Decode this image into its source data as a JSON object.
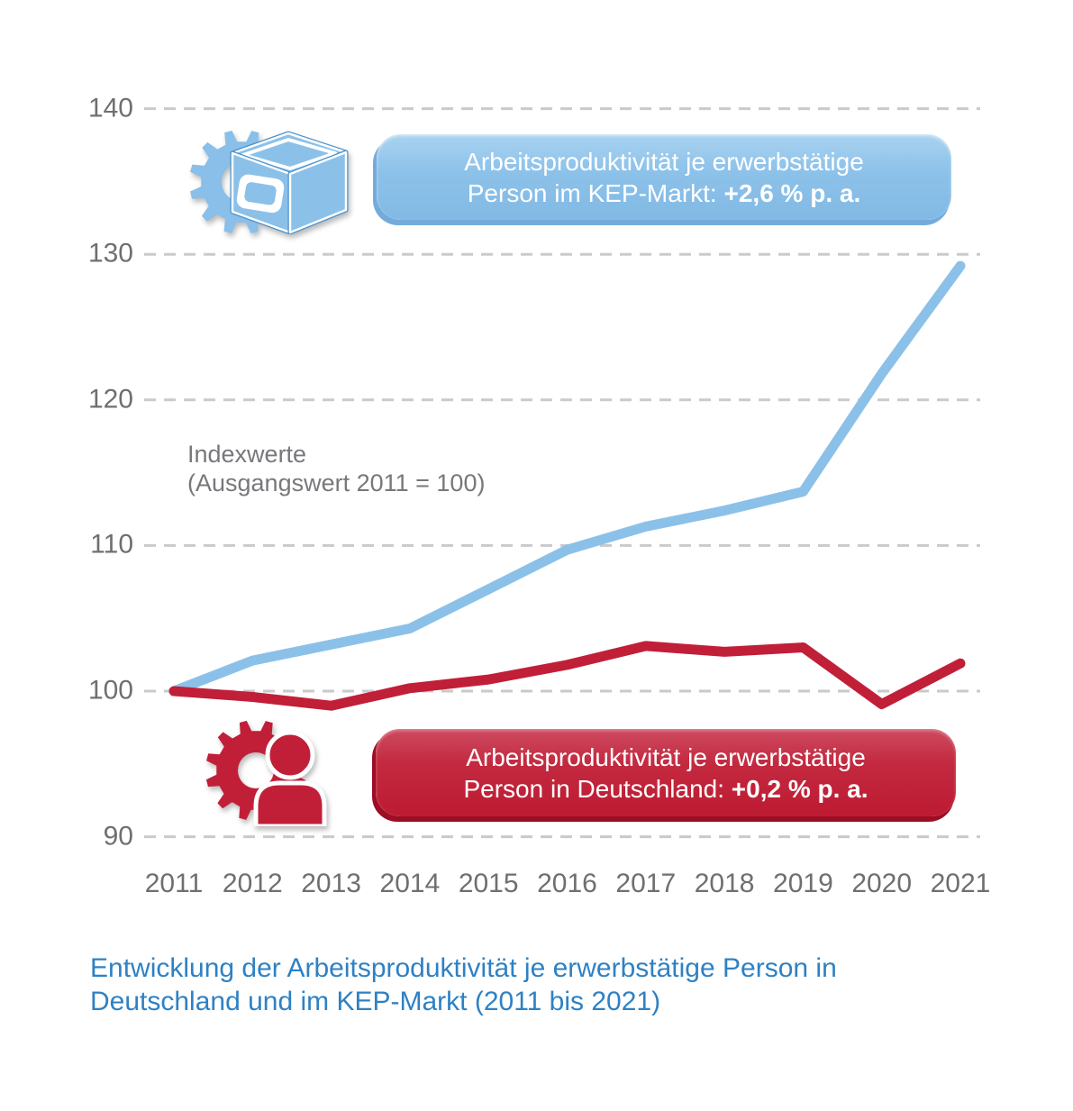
{
  "chart_data": {
    "type": "line",
    "title": "Entwicklung der Arbeitsproduktivität je erwerbstätige Person in Deutschland und im KEP-Markt (2011 bis 2021)",
    "annotation": "Indexwerte (Ausgangswert 2011 = 100)",
    "categories": [
      "2011",
      "2012",
      "2013",
      "2014",
      "2015",
      "2016",
      "2017",
      "2018",
      "2019",
      "2020",
      "2021"
    ],
    "yticks": [
      140,
      130,
      120,
      110,
      100,
      90
    ],
    "ylim": [
      90,
      140
    ],
    "grid": "horizontal-dashed",
    "legend_position": "inline-badges",
    "series": [
      {
        "name": "Arbeitsproduktivität je erwerbstätige Person im KEP-Markt",
        "growth_per_year": "+2,6 % p. a.",
        "color": "#8BC1E9",
        "values": [
          100,
          102.1,
          103.2,
          104.3,
          107.0,
          109.7,
          111.3,
          112.4,
          113.7,
          121.8,
          129.2
        ]
      },
      {
        "name": "Arbeitsproduktivität je erwerbstätige Person in Deutschland",
        "growth_per_year": "+0,2 % p. a.",
        "color": "#C11F38",
        "values": [
          100,
          99.6,
          99.0,
          100.2,
          100.8,
          101.8,
          103.1,
          102.7,
          103.0,
          99.1,
          101.9
        ]
      }
    ]
  },
  "badges": {
    "kep": {
      "line1": "Arbeitsproduktivität je erwerbstätige",
      "line2_prefix": "Person im KEP-Markt: ",
      "stat": "+2,6 % p. a."
    },
    "de": {
      "line1": "Arbeitsproduktivität je erwerbstätige",
      "line2_prefix": "Person in Deutschland: ",
      "stat": "+0,2 % p. a."
    }
  },
  "axis_note": {
    "line1": "Indexwerte",
    "line2": "(Ausgangswert 2011 = 100)"
  },
  "caption": {
    "line1": "Entwicklung der Arbeitsproduktivität je erwerbstätige Person in",
    "line2": "Deutschland und im KEP-Markt (2011 bis 2021)"
  },
  "colors": {
    "kep_blue": "#8BC1E9",
    "blue_dark": "#4C91CA",
    "red": "#C11F38",
    "red_dark": "#9C0D26",
    "grid": "#C9CACB",
    "axis_text": "#6E6F71",
    "note_text": "#77787B",
    "caption_blue": "#2E81C4",
    "badge_text": "#FFFFFF"
  }
}
